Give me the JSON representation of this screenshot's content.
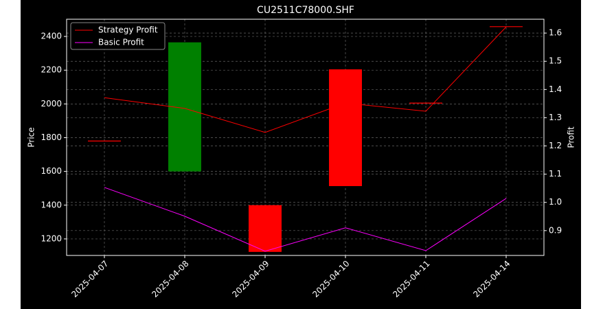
{
  "chart_data": {
    "type": "candlestick",
    "title": "CU2511C78000.SHF",
    "categories": [
      "2025-04-07",
      "2025-04-08",
      "2025-04-09",
      "2025-04-10",
      "2025-04-11",
      "2025-04-14"
    ],
    "candles": {
      "open": [
        1780,
        1600,
        1400,
        2205,
        2005,
        2458
      ],
      "close": [
        1780,
        2365,
        1123,
        1513,
        2005,
        2458
      ],
      "up_color": "#008000",
      "down_color": "#ff0000"
    },
    "series": [
      {
        "name": "Strategy Profit",
        "color": "#ff0000",
        "axis": "y2",
        "values": [
          1.371,
          1.333,
          1.248,
          1.352,
          1.323,
          1.622
        ]
      },
      {
        "name": "Basic Profit",
        "color": "#ff00ff",
        "axis": "y2",
        "values": [
          1.053,
          0.951,
          0.827,
          0.91,
          0.829,
          1.014
        ]
      }
    ],
    "ylabel": "Price",
    "y2label": "Profit",
    "ylim": [
      1102,
      2502
    ],
    "yticks": [
      1200,
      1400,
      1600,
      1800,
      2000,
      2200,
      2400
    ],
    "y2lim": [
      0.812,
      1.649
    ],
    "y2ticks": [
      0.9,
      {
        "value": 1,
        "label": "1.0"
      },
      1.1,
      1.2,
      1.3,
      1.4,
      1.5,
      1.6
    ],
    "grid": true,
    "legend": "upper left"
  }
}
